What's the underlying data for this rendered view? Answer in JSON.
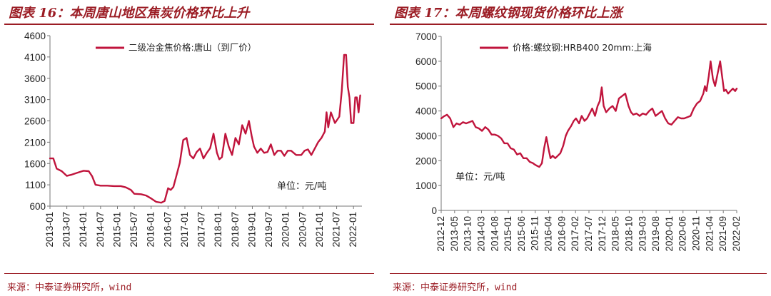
{
  "chart_data": [
    {
      "type": "line",
      "title": "图表 16：本周唐山地区焦炭价格环比上升",
      "legend": "二级冶金焦价格:唐山（到厂价）",
      "unit": "单位：元/吨",
      "source": "来源：中泰证券研究所，wind",
      "color": "#c0143c",
      "ylim": [
        600,
        4600
      ],
      "yticks": [
        600,
        1100,
        1600,
        2100,
        2600,
        3100,
        3600,
        4100,
        4600
      ],
      "xlim": [
        2013.0,
        2022.25
      ],
      "xticks": [
        "2013-01",
        "2013-07",
        "2014-01",
        "2014-07",
        "2015-01",
        "2015-07",
        "2016-01",
        "2016-07",
        "2017-01",
        "2017-07",
        "2018-01",
        "2018-07",
        "2019-01",
        "2019-07",
        "2020-01",
        "2020-07",
        "2021-01",
        "2021-07",
        "2022-01"
      ],
      "series": [
        {
          "name": "二级冶金焦价格:唐山（到厂价）",
          "x": [
            2013.0,
            2013.1,
            2013.2,
            2013.35,
            2013.5,
            2013.65,
            2013.8,
            2014.0,
            2014.15,
            2014.25,
            2014.35,
            2014.5,
            2014.7,
            2014.9,
            2015.1,
            2015.25,
            2015.4,
            2015.5,
            2015.7,
            2015.85,
            2016.0,
            2016.15,
            2016.3,
            2016.4,
            2016.5,
            2016.58,
            2016.66,
            2016.75,
            2016.85,
            2016.95,
            2017.05,
            2017.15,
            2017.25,
            2017.35,
            2017.45,
            2017.55,
            2017.65,
            2017.75,
            2017.85,
            2017.95,
            2018.02,
            2018.1,
            2018.2,
            2018.3,
            2018.4,
            2018.5,
            2018.6,
            2018.7,
            2018.8,
            2018.9,
            2018.98,
            2019.05,
            2019.15,
            2019.25,
            2019.35,
            2019.45,
            2019.55,
            2019.65,
            2019.75,
            2019.85,
            2019.95,
            2020.05,
            2020.15,
            2020.3,
            2020.45,
            2020.55,
            2020.65,
            2020.75,
            2020.85,
            2020.95,
            2021.05,
            2021.15,
            2021.2,
            2021.25,
            2021.33,
            2021.45,
            2021.58,
            2021.65,
            2021.72,
            2021.78,
            2021.83,
            2021.88,
            2021.93,
            2022.0,
            2022.05,
            2022.1,
            2022.15,
            2022.2
          ],
          "values": [
            1720,
            1720,
            1480,
            1420,
            1310,
            1340,
            1380,
            1430,
            1420,
            1300,
            1100,
            1080,
            1080,
            1070,
            1070,
            1040,
            980,
            890,
            880,
            850,
            780,
            700,
            680,
            720,
            1020,
            980,
            1050,
            1320,
            1620,
            2150,
            2200,
            1800,
            1720,
            1870,
            1950,
            1720,
            1850,
            1960,
            2300,
            1850,
            1700,
            1750,
            2300,
            2000,
            1800,
            2200,
            2050,
            2500,
            2300,
            2600,
            2250,
            2000,
            1850,
            1950,
            1850,
            1870,
            2050,
            1800,
            1900,
            1900,
            1780,
            1900,
            1900,
            1800,
            1800,
            1900,
            1930,
            1800,
            1950,
            2100,
            2200,
            2350,
            2800,
            2450,
            2800,
            2550,
            2700,
            3300,
            4150,
            4150,
            3400,
            3150,
            2550,
            2550,
            3150,
            3150,
            2800,
            3200
          ]
        }
      ]
    },
    {
      "type": "line",
      "title": "图表 17：本周螺纹钢现货价格环比上涨",
      "legend": "价格:螺纹钢:HRB400 20mm:上海",
      "unit": "单位：元/吨",
      "source": "来源：中泰证券研究所，wind",
      "color": "#c0143c",
      "ylim": [
        0,
        7000
      ],
      "yticks": [
        0,
        1000,
        2000,
        3000,
        4000,
        5000,
        6000,
        7000
      ],
      "xlim": [
        2012.917,
        2022.2
      ],
      "xticks": [
        "2012-12",
        "2013-05",
        "2013-10",
        "2014-03",
        "2014-08",
        "2015-01",
        "2015-06",
        "2015-11",
        "2016-04",
        "2016-09",
        "2017-02",
        "2017-07",
        "2017-12",
        "2018-05",
        "2018-10",
        "2019-03",
        "2019-08",
        "2020-01",
        "2020-06",
        "2020-11",
        "2021-04",
        "2021-09",
        "2022-02"
      ],
      "series": [
        {
          "name": "价格:螺纹钢:HRB400 20mm:上海",
          "x": [
            2012.92,
            2013.0,
            2013.1,
            2013.2,
            2013.3,
            2013.4,
            2013.5,
            2013.6,
            2013.7,
            2013.8,
            2013.9,
            2014.0,
            2014.1,
            2014.2,
            2014.3,
            2014.4,
            2014.5,
            2014.6,
            2014.7,
            2014.8,
            2014.9,
            2015.0,
            2015.1,
            2015.2,
            2015.3,
            2015.4,
            2015.5,
            2015.6,
            2015.7,
            2015.8,
            2015.85,
            2015.92,
            2016.0,
            2016.08,
            2016.15,
            2016.22,
            2016.3,
            2016.35,
            2016.42,
            2016.5,
            2016.58,
            2016.66,
            2016.75,
            2016.83,
            2016.9,
            2017.0,
            2017.08,
            2017.15,
            2017.25,
            2017.33,
            2017.42,
            2017.5,
            2017.58,
            2017.66,
            2017.75,
            2017.83,
            2017.9,
            2017.96,
            2018.02,
            2018.1,
            2018.2,
            2018.3,
            2018.4,
            2018.5,
            2018.6,
            2018.7,
            2018.8,
            2018.88,
            2018.95,
            2019.05,
            2019.15,
            2019.25,
            2019.35,
            2019.45,
            2019.55,
            2019.65,
            2019.75,
            2019.85,
            2019.95,
            2020.05,
            2020.15,
            2020.25,
            2020.35,
            2020.45,
            2020.55,
            2020.65,
            2020.75,
            2020.85,
            2020.95,
            2021.05,
            2021.15,
            2021.2,
            2021.25,
            2021.32,
            2021.38,
            2021.45,
            2021.52,
            2021.6,
            2021.68,
            2021.74,
            2021.8,
            2021.86,
            2021.93,
            2022.0,
            2022.08,
            2022.15,
            2022.2
          ],
          "values": [
            3700,
            3780,
            3850,
            3700,
            3350,
            3500,
            3450,
            3550,
            3500,
            3550,
            3600,
            3350,
            3300,
            3200,
            3350,
            3250,
            3050,
            3050,
            3000,
            2900,
            2700,
            2700,
            2500,
            2450,
            2250,
            2300,
            2100,
            2100,
            1950,
            1900,
            1850,
            1800,
            1750,
            1900,
            2500,
            2950,
            2400,
            2100,
            2200,
            2100,
            2200,
            2300,
            2600,
            3000,
            3200,
            3400,
            3600,
            3700,
            3500,
            3800,
            3600,
            3700,
            3900,
            4100,
            3800,
            4200,
            4400,
            4950,
            4200,
            3950,
            4100,
            4200,
            4000,
            4500,
            4600,
            4700,
            4200,
            3950,
            3850,
            3900,
            3800,
            3900,
            3850,
            4000,
            4100,
            3800,
            3900,
            4000,
            3700,
            3500,
            3450,
            3600,
            3750,
            3700,
            3700,
            3750,
            3800,
            4100,
            4300,
            4400,
            4700,
            5000,
            4800,
            5400,
            6000,
            5300,
            5000,
            5500,
            6000,
            5400,
            4800,
            4850,
            4700,
            4800,
            4900,
            4800,
            4900
          ]
        }
      ]
    }
  ]
}
